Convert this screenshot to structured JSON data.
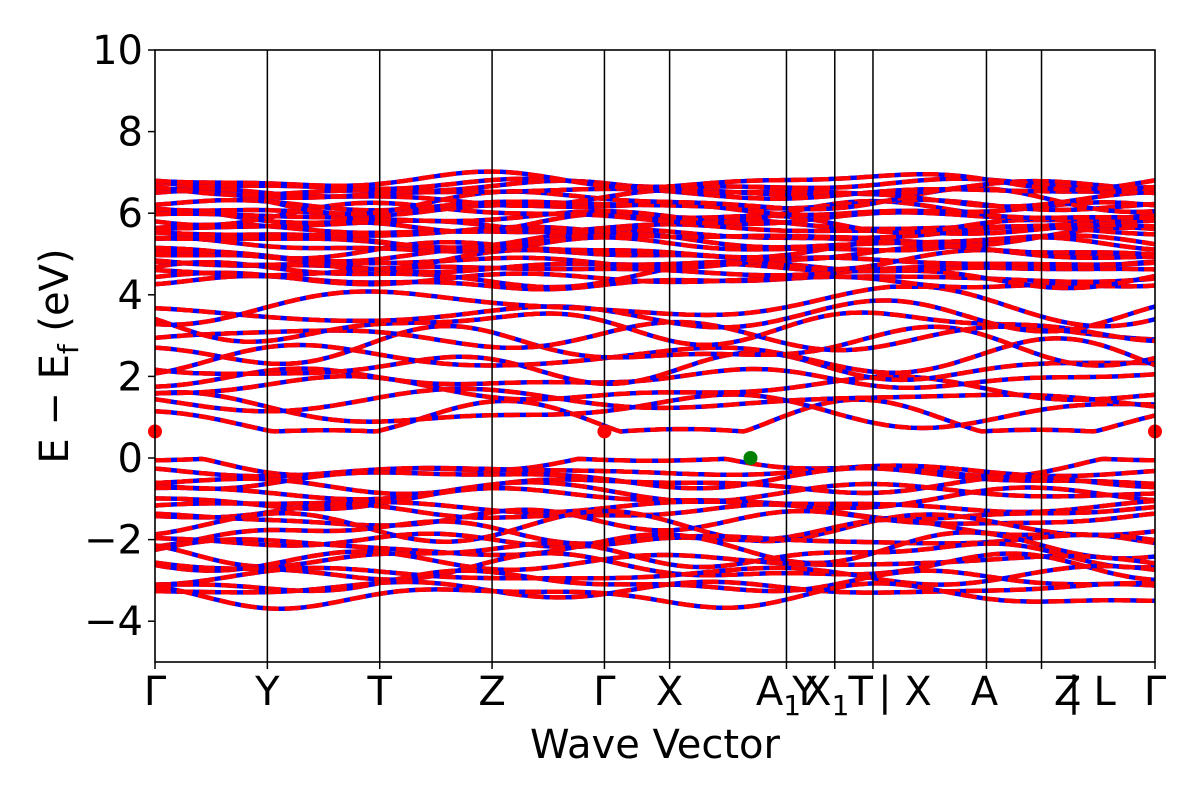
{
  "chart_data": {
    "type": "line",
    "title": "",
    "xlabel": "Wave Vector",
    "ylabel": "E − E",
    "ylabel_sub": "f",
    "ylabel_unit": "(eV)",
    "ylim": [
      -5,
      10
    ],
    "yticks": [
      -4,
      -2,
      0,
      2,
      4,
      6,
      8,
      10
    ],
    "ytick_labels": [
      "−4",
      "−2",
      "0",
      "2",
      "4",
      "6",
      "8",
      "10"
    ],
    "grid": false,
    "series_colors": [
      "#ff0000",
      "#0000ff"
    ],
    "kpath": [
      {
        "label": "Γ",
        "sub": "",
        "x": 0.0
      },
      {
        "label": "Y",
        "sub": "",
        "x": 1.0
      },
      {
        "label": "T",
        "sub": "",
        "x": 2.0
      },
      {
        "label": "Z",
        "sub": "",
        "x": 3.0
      },
      {
        "label": "Γ",
        "sub": "",
        "x": 4.0
      },
      {
        "label": "X",
        "sub": "",
        "x": 4.58
      },
      {
        "label": "A",
        "sub": "1",
        "x": 5.62
      },
      {
        "label": "Y",
        "sub": "",
        "x": 5.62
      },
      {
        "label": "X",
        "sub": "1",
        "x": 6.05
      },
      {
        "label": "T",
        "sub": "",
        "x": 6.05
      },
      {
        "label": "| X",
        "sub": "",
        "x": 6.39
      },
      {
        "label": "A",
        "sub": "",
        "x": 7.4
      },
      {
        "label": "Z",
        "sub": "",
        "x": 7.89
      },
      {
        "label": "| L",
        "sub": "",
        "x": 7.89
      },
      {
        "label": "Γ",
        "sub": "",
        "x": 8.9
      }
    ],
    "xlim": [
      0,
      8.9
    ],
    "vband_max": {
      "x": 5.3,
      "y": 0.0,
      "color": "#008000"
    },
    "cband_min": [
      {
        "x": 0.0,
        "y": 0.65
      },
      {
        "x": 4.0,
        "y": 0.65
      },
      {
        "x": 8.9,
        "y": 0.65
      }
    ]
  }
}
